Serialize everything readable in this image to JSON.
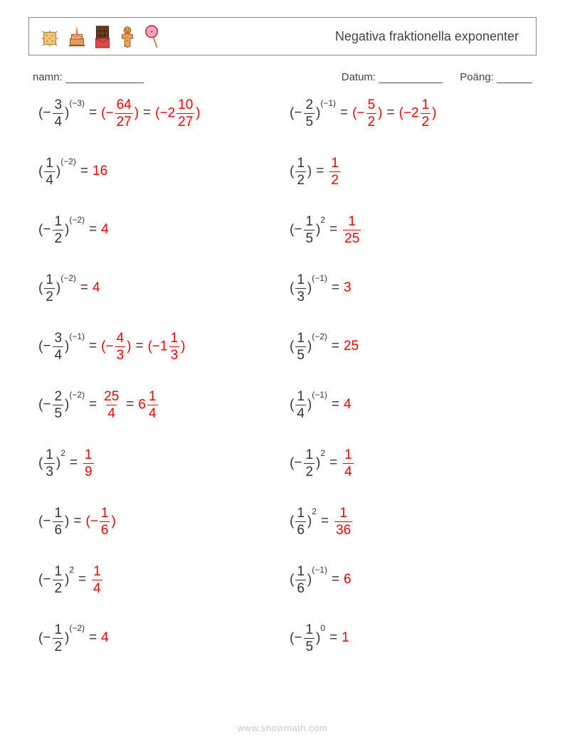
{
  "header": {
    "title": "Negativa fraktionella exponenter",
    "icons": [
      "cracker",
      "cake",
      "chocolate",
      "gingerbread",
      "lollipop"
    ]
  },
  "meta": {
    "name_label": "namn:",
    "name_blank_width": 110,
    "date_label": "Datum:",
    "date_blank_width": 90,
    "score_label": "Poäng:",
    "score_blank_width": 50
  },
  "colors": {
    "text": "#333333",
    "answer": "#e60000",
    "border": "#888888",
    "watermark": "#c9c9c9",
    "background": "#ffffff"
  },
  "fonts": {
    "body_size": 19,
    "exp_size": 12,
    "title_size": 18,
    "meta_size": 15
  },
  "problems": [
    {
      "base": {
        "neg": true,
        "num": "3",
        "den": "4"
      },
      "exp": "(−3)",
      "answers": [
        {
          "type": "pfrac",
          "neg": true,
          "num": "64",
          "den": "27"
        },
        {
          "type": "pmixed",
          "neg": true,
          "whole": "2",
          "num": "10",
          "den": "27"
        }
      ]
    },
    {
      "base": {
        "neg": true,
        "num": "2",
        "den": "5"
      },
      "exp": "(−1)",
      "answers": [
        {
          "type": "pfrac",
          "neg": true,
          "num": "5",
          "den": "2"
        },
        {
          "type": "pmixed",
          "neg": true,
          "whole": "2",
          "num": "1",
          "den": "2"
        }
      ]
    },
    {
      "base": {
        "neg": false,
        "num": "1",
        "den": "4"
      },
      "exp": "(−2)",
      "answers": [
        {
          "type": "int",
          "val": "16"
        }
      ]
    },
    {
      "base": {
        "neg": false,
        "num": "1",
        "den": "2"
      },
      "exp": "",
      "answers": [
        {
          "type": "frac",
          "num": "1",
          "den": "2"
        }
      ]
    },
    {
      "base": {
        "neg": true,
        "num": "1",
        "den": "2"
      },
      "exp": "(−2)",
      "answers": [
        {
          "type": "int",
          "val": "4"
        }
      ]
    },
    {
      "base": {
        "neg": true,
        "num": "1",
        "den": "5"
      },
      "exp": "2",
      "answers": [
        {
          "type": "frac",
          "num": "1",
          "den": "25"
        }
      ]
    },
    {
      "base": {
        "neg": false,
        "num": "1",
        "den": "2"
      },
      "exp": "(−2)",
      "answers": [
        {
          "type": "int",
          "val": "4"
        }
      ]
    },
    {
      "base": {
        "neg": false,
        "num": "1",
        "den": "3"
      },
      "exp": "(−1)",
      "answers": [
        {
          "type": "int",
          "val": "3"
        }
      ]
    },
    {
      "base": {
        "neg": true,
        "num": "3",
        "den": "4"
      },
      "exp": "(−1)",
      "answers": [
        {
          "type": "pfrac",
          "neg": true,
          "num": "4",
          "den": "3"
        },
        {
          "type": "pmixed",
          "neg": true,
          "whole": "1",
          "num": "1",
          "den": "3"
        }
      ]
    },
    {
      "base": {
        "neg": false,
        "num": "1",
        "den": "5"
      },
      "exp": "(−2)",
      "answers": [
        {
          "type": "int",
          "val": "25"
        }
      ]
    },
    {
      "base": {
        "neg": true,
        "num": "2",
        "den": "5"
      },
      "exp": "(−2)",
      "answers": [
        {
          "type": "frac",
          "num": "25",
          "den": "4"
        },
        {
          "type": "mixed",
          "whole": "6",
          "num": "1",
          "den": "4"
        }
      ]
    },
    {
      "base": {
        "neg": false,
        "num": "1",
        "den": "4"
      },
      "exp": "(−1)",
      "answers": [
        {
          "type": "int",
          "val": "4"
        }
      ]
    },
    {
      "base": {
        "neg": false,
        "num": "1",
        "den": "3"
      },
      "exp": "2",
      "answers": [
        {
          "type": "frac",
          "num": "1",
          "den": "9"
        }
      ]
    },
    {
      "base": {
        "neg": true,
        "num": "1",
        "den": "2"
      },
      "exp": "2",
      "answers": [
        {
          "type": "frac",
          "num": "1",
          "den": "4"
        }
      ]
    },
    {
      "base": {
        "neg": true,
        "num": "1",
        "den": "6"
      },
      "exp": "",
      "answers": [
        {
          "type": "pfrac",
          "neg": true,
          "num": "1",
          "den": "6"
        }
      ]
    },
    {
      "base": {
        "neg": false,
        "num": "1",
        "den": "6"
      },
      "exp": "2",
      "answers": [
        {
          "type": "frac",
          "num": "1",
          "den": "36"
        }
      ]
    },
    {
      "base": {
        "neg": true,
        "num": "1",
        "den": "2"
      },
      "exp": "2",
      "answers": [
        {
          "type": "frac",
          "num": "1",
          "den": "4"
        }
      ]
    },
    {
      "base": {
        "neg": false,
        "num": "1",
        "den": "6"
      },
      "exp": "(−1)",
      "answers": [
        {
          "type": "int",
          "val": "6"
        }
      ]
    },
    {
      "base": {
        "neg": true,
        "num": "1",
        "den": "2"
      },
      "exp": "(−2)",
      "answers": [
        {
          "type": "int",
          "val": "4"
        }
      ]
    },
    {
      "base": {
        "neg": true,
        "num": "1",
        "den": "5"
      },
      "exp": "0",
      "answers": [
        {
          "type": "int",
          "val": "1"
        }
      ]
    }
  ],
  "watermark": "www.snowmath.com"
}
